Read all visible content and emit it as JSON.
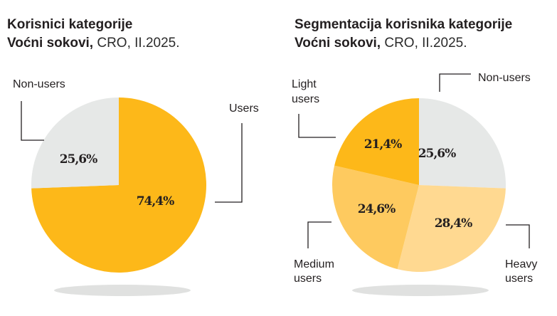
{
  "chart_data": [
    {
      "type": "pie",
      "title_line1": "Korisnici kategorije",
      "title_line2_bold": "Voćni sokovi,",
      "title_line2_rest": " CRO, II.2025.",
      "slices": [
        {
          "name": "Users",
          "label": "Users",
          "value": 74.4,
          "value_label": "74,4%",
          "color": "#FDB819"
        },
        {
          "name": "Non-users",
          "label": "Non-users",
          "value": 25.6,
          "value_label": "25,6%",
          "color": "#E6E8E7"
        }
      ]
    },
    {
      "type": "pie",
      "title_line1": "Segmentacija korisnika kategorije",
      "title_line2_bold": "Voćni sokovi,",
      "title_line2_rest": " CRO, II.2025.",
      "slices": [
        {
          "name": "Non-users",
          "label_lines": [
            "Non-users"
          ],
          "value": 25.6,
          "value_label": "25,6%",
          "color": "#E6E8E7"
        },
        {
          "name": "Heavy users",
          "label_lines": [
            "Heavy",
            "users"
          ],
          "value": 28.4,
          "value_label": "28,4%",
          "color": "#FFD991"
        },
        {
          "name": "Medium users",
          "label_lines": [
            "Medium",
            "users"
          ],
          "value": 24.6,
          "value_label": "24,6%",
          "color": "#FECA5F"
        },
        {
          "name": "Light users",
          "label_lines": [
            "Light",
            "users"
          ],
          "value": 21.4,
          "value_label": "21,4%",
          "color": "#FDB819"
        }
      ]
    }
  ],
  "colors": {
    "shadow": "#E0E1E0",
    "text": "#231f20"
  }
}
